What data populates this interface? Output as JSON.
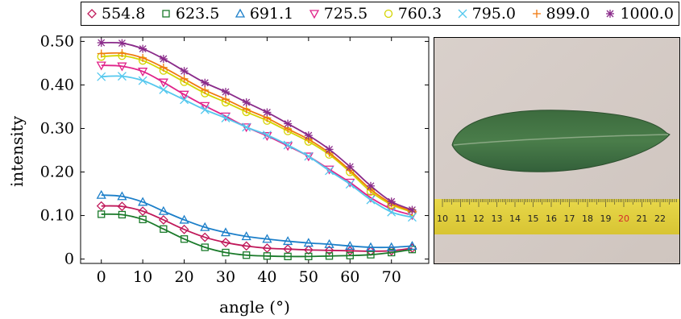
{
  "chart_data": {
    "type": "line",
    "xlabel": "angle (°)",
    "ylabel": "intensity",
    "xlim": [
      -5,
      79
    ],
    "ylim": [
      -0.01,
      0.51
    ],
    "xticks": [
      "0",
      "10",
      "20",
      "30",
      "40",
      "50",
      "60",
      "70"
    ],
    "yticks": [
      "0",
      "0.10",
      "0.20",
      "0.30",
      "0.40",
      "0.50"
    ],
    "x": [
      0,
      5,
      10,
      15,
      20,
      25,
      30,
      35,
      40,
      45,
      50,
      55,
      60,
      65,
      70,
      75
    ],
    "legend_position": "top",
    "series": [
      {
        "name": "554.8",
        "color": "#c0195a",
        "marker": "diamond",
        "values": [
          0.122,
          0.121,
          0.11,
          0.09,
          0.068,
          0.05,
          0.038,
          0.03,
          0.025,
          0.023,
          0.021,
          0.02,
          0.019,
          0.018,
          0.019,
          0.025
        ]
      },
      {
        "name": "623.5",
        "color": "#1a7a2a",
        "marker": "square",
        "values": [
          0.103,
          0.102,
          0.091,
          0.069,
          0.046,
          0.027,
          0.015,
          0.009,
          0.007,
          0.006,
          0.006,
          0.007,
          0.008,
          0.01,
          0.015,
          0.022
        ]
      },
      {
        "name": "691.1",
        "color": "#1c7fc9",
        "marker": "triangle-up",
        "values": [
          0.147,
          0.144,
          0.131,
          0.11,
          0.09,
          0.073,
          0.061,
          0.052,
          0.046,
          0.041,
          0.037,
          0.034,
          0.03,
          0.027,
          0.027,
          0.03
        ]
      },
      {
        "name": "725.5",
        "color": "#e0238a",
        "marker": "triangle-down",
        "values": [
          0.445,
          0.443,
          0.431,
          0.406,
          0.378,
          0.352,
          0.328,
          0.303,
          0.283,
          0.26,
          0.236,
          0.206,
          0.176,
          0.141,
          0.115,
          0.101
        ]
      },
      {
        "name": "760.3",
        "color": "#d4d400",
        "marker": "circle",
        "values": [
          0.465,
          0.467,
          0.456,
          0.433,
          0.407,
          0.381,
          0.36,
          0.338,
          0.318,
          0.294,
          0.27,
          0.24,
          0.2,
          0.155,
          0.125,
          0.108
        ]
      },
      {
        "name": "795.0",
        "color": "#55c8ee",
        "marker": "x",
        "values": [
          0.419,
          0.42,
          0.41,
          0.389,
          0.366,
          0.343,
          0.324,
          0.303,
          0.285,
          0.262,
          0.236,
          0.203,
          0.172,
          0.136,
          0.108,
          0.096
        ]
      },
      {
        "name": "899.0",
        "color": "#f07a10",
        "marker": "plus",
        "values": [
          0.472,
          0.473,
          0.462,
          0.44,
          0.414,
          0.388,
          0.367,
          0.344,
          0.324,
          0.299,
          0.275,
          0.244,
          0.204,
          0.16,
          0.128,
          0.11
        ]
      },
      {
        "name": "1000.0",
        "color": "#8a2b8a",
        "marker": "star",
        "values": [
          0.497,
          0.496,
          0.483,
          0.46,
          0.432,
          0.405,
          0.384,
          0.36,
          0.337,
          0.311,
          0.284,
          0.252,
          0.212,
          0.168,
          0.132,
          0.113
        ]
      }
    ]
  },
  "photo": {
    "ruler_numbers": [
      "10",
      "11",
      "12",
      "13",
      "14",
      "15",
      "16",
      "17",
      "18",
      "19",
      "20",
      "21",
      "22"
    ],
    "ruler_highlight": "20"
  }
}
